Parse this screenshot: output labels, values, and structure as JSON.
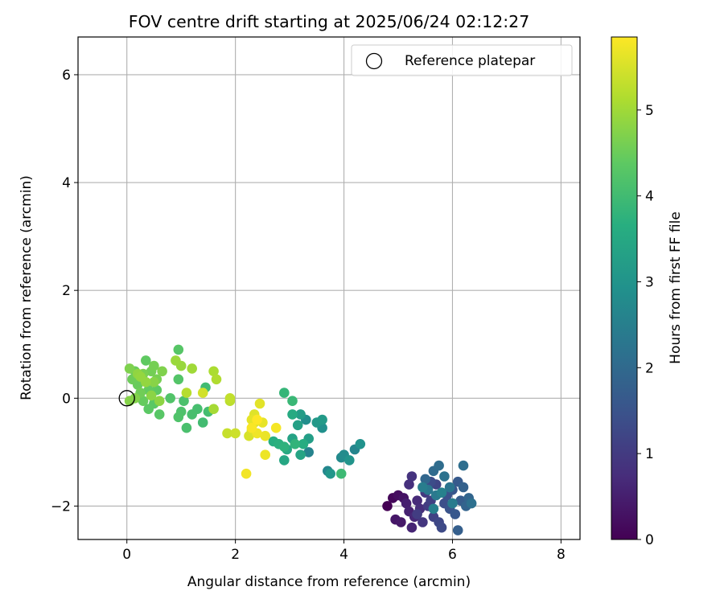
{
  "chart_data": {
    "type": "scatter",
    "title": "FOV centre drift starting at 2025/06/24 02:12:27",
    "xlabel": "Angular distance from reference (arcmin)",
    "ylabel": "Rotation from reference (arcmin)",
    "xlim": [
      -0.9,
      8.35
    ],
    "ylim": [
      -2.62,
      6.7
    ],
    "x_ticks": [
      0,
      2,
      4,
      6,
      8
    ],
    "y_ticks": [
      -2,
      0,
      2,
      4,
      6
    ],
    "x_tick_labels": [
      "0",
      "2",
      "4",
      "6",
      "8"
    ],
    "y_tick_labels": [
      "−2",
      "0",
      "2",
      "4",
      "6"
    ],
    "grid": true,
    "legend": {
      "position": "top-right",
      "entries": [
        {
          "label": "Reference platepar",
          "marker": "open-circle"
        }
      ]
    },
    "reference_point": {
      "x": 0,
      "y": 0
    },
    "colorbar": {
      "label": "Hours from first FF file",
      "colormap": "viridis",
      "range": [
        0,
        5.85
      ],
      "ticks": [
        0,
        1,
        2,
        3,
        4,
        5
      ],
      "tick_labels": [
        "0",
        "1",
        "2",
        "3",
        "4",
        "5"
      ]
    },
    "series": [
      {
        "points": [
          [
            4.8,
            -2.0,
            0.0
          ],
          [
            4.9,
            -1.85,
            0.1
          ],
          [
            5.0,
            -1.8,
            0.2
          ],
          [
            5.1,
            -1.85,
            0.3
          ],
          [
            4.95,
            -2.25,
            0.35
          ],
          [
            5.05,
            -2.3,
            0.4
          ],
          [
            5.15,
            -1.95,
            0.5
          ],
          [
            5.2,
            -2.1,
            0.55
          ],
          [
            5.25,
            -2.4,
            0.6
          ],
          [
            5.3,
            -2.2,
            0.65
          ],
          [
            5.35,
            -1.9,
            0.7
          ],
          [
            5.4,
            -2.05,
            0.75
          ],
          [
            5.2,
            -1.6,
            0.8
          ],
          [
            5.25,
            -1.45,
            0.85
          ],
          [
            5.45,
            -2.3,
            0.9
          ],
          [
            5.5,
            -1.75,
            0.95
          ],
          [
            5.55,
            -2.0,
            1.0
          ],
          [
            5.35,
            -2.15,
            1.05
          ],
          [
            5.6,
            -1.9,
            1.1
          ],
          [
            5.65,
            -2.2,
            1.15
          ],
          [
            5.7,
            -1.6,
            1.2
          ],
          [
            5.75,
            -2.3,
            1.25
          ],
          [
            5.8,
            -2.4,
            1.3
          ],
          [
            5.6,
            -1.55,
            1.35
          ],
          [
            5.85,
            -1.95,
            1.4
          ],
          [
            5.9,
            -1.8,
            1.45
          ],
          [
            5.95,
            -2.05,
            1.5
          ],
          [
            6.0,
            -1.7,
            1.55
          ],
          [
            6.05,
            -2.15,
            1.6
          ],
          [
            6.1,
            -1.55,
            1.65
          ],
          [
            6.15,
            -1.9,
            1.7
          ],
          [
            6.1,
            -2.45,
            1.75
          ],
          [
            6.2,
            -1.65,
            1.8
          ],
          [
            6.25,
            -2.0,
            1.85
          ],
          [
            6.3,
            -1.85,
            1.9
          ],
          [
            5.5,
            -1.5,
            1.95
          ],
          [
            5.65,
            -1.35,
            2.0
          ],
          [
            5.75,
            -1.25,
            2.05
          ],
          [
            6.2,
            -1.25,
            2.1
          ],
          [
            6.35,
            -1.95,
            2.15
          ],
          [
            5.85,
            -1.45,
            2.2
          ],
          [
            5.95,
            -1.65,
            2.25
          ],
          [
            5.55,
            -1.7,
            2.3
          ],
          [
            5.7,
            -1.8,
            2.35
          ],
          [
            6.0,
            -1.95,
            2.4
          ],
          [
            5.45,
            -1.65,
            2.45
          ],
          [
            5.65,
            -2.05,
            2.5
          ],
          [
            5.8,
            -1.75,
            2.55
          ],
          [
            3.35,
            -1.0,
            2.6
          ],
          [
            4.2,
            -0.95,
            2.65
          ],
          [
            3.7,
            -1.35,
            2.7
          ],
          [
            3.95,
            -1.1,
            2.75
          ],
          [
            4.0,
            -1.05,
            2.8
          ],
          [
            3.3,
            -0.4,
            2.85
          ],
          [
            3.6,
            -0.55,
            2.9
          ],
          [
            4.3,
            -0.85,
            2.95
          ],
          [
            4.1,
            -1.15,
            3.0
          ],
          [
            3.75,
            -1.4,
            3.05
          ],
          [
            3.5,
            -0.45,
            3.1
          ],
          [
            3.6,
            -0.4,
            3.15
          ],
          [
            3.2,
            -0.3,
            3.2
          ],
          [
            3.35,
            -0.75,
            3.25
          ],
          [
            3.15,
            -0.5,
            3.3
          ],
          [
            3.05,
            -0.75,
            3.35
          ],
          [
            3.2,
            -1.05,
            3.4
          ],
          [
            2.9,
            -1.15,
            3.45
          ],
          [
            2.95,
            -0.95,
            3.5
          ],
          [
            3.05,
            -0.3,
            3.55
          ],
          [
            3.25,
            -0.85,
            3.6
          ],
          [
            2.7,
            -0.8,
            3.65
          ],
          [
            2.8,
            -0.85,
            3.7
          ],
          [
            2.9,
            -0.9,
            3.75
          ],
          [
            3.1,
            -0.85,
            3.8
          ],
          [
            2.9,
            0.1,
            3.85
          ],
          [
            3.05,
            -0.05,
            3.9
          ],
          [
            3.95,
            -1.4,
            3.95
          ],
          [
            1.45,
            0.2,
            4.0
          ],
          [
            1.4,
            -0.45,
            4.02
          ],
          [
            1.5,
            -0.25,
            4.05
          ],
          [
            1.3,
            -0.2,
            4.08
          ],
          [
            1.2,
            -0.3,
            4.1
          ],
          [
            1.1,
            -0.55,
            4.12
          ],
          [
            1.05,
            -0.05,
            4.15
          ],
          [
            1.0,
            -0.25,
            4.18
          ],
          [
            0.95,
            -0.35,
            4.2
          ],
          [
            0.8,
            0.0,
            4.22
          ],
          [
            0.95,
            0.35,
            4.25
          ],
          [
            0.95,
            0.9,
            4.28
          ],
          [
            0.6,
            -0.3,
            4.3
          ],
          [
            0.5,
            -0.1,
            4.32
          ],
          [
            0.4,
            -0.2,
            4.35
          ],
          [
            0.55,
            0.15,
            4.38
          ],
          [
            0.35,
            0.7,
            4.4
          ],
          [
            0.4,
            0.15,
            4.42
          ],
          [
            0.3,
            -0.05,
            4.45
          ],
          [
            0.2,
            0.25,
            4.48
          ],
          [
            0.15,
            0.5,
            4.5
          ],
          [
            0.1,
            0.35,
            4.52
          ],
          [
            0.25,
            0.1,
            4.55
          ],
          [
            0.45,
            0.5,
            4.58
          ],
          [
            0.5,
            0.6,
            4.6
          ],
          [
            0.55,
            0.35,
            4.62
          ],
          [
            0.3,
            0.45,
            4.65
          ],
          [
            0.05,
            0.55,
            4.68
          ],
          [
            0.65,
            0.5,
            4.7
          ],
          [
            0.15,
            0.0,
            4.72
          ],
          [
            0.05,
            -0.05,
            4.75
          ],
          [
            0.5,
            0.3,
            4.78
          ],
          [
            0.45,
            0.05,
            4.8
          ],
          [
            0.6,
            -0.05,
            4.82
          ],
          [
            0.2,
            0.45,
            4.85
          ],
          [
            0.35,
            0.3,
            4.88
          ],
          [
            0.25,
            0.4,
            4.9
          ],
          [
            1.0,
            0.6,
            4.92
          ],
          [
            0.9,
            0.7,
            4.95
          ],
          [
            1.2,
            0.55,
            5.0
          ],
          [
            1.6,
            -0.2,
            5.05
          ],
          [
            1.6,
            0.5,
            5.1
          ],
          [
            1.65,
            0.35,
            5.15
          ],
          [
            1.1,
            0.1,
            5.2
          ],
          [
            1.9,
            -0.05,
            5.25
          ],
          [
            1.9,
            0.0,
            5.3
          ],
          [
            1.85,
            -0.65,
            5.35
          ],
          [
            2.0,
            -0.65,
            5.4
          ],
          [
            1.4,
            0.1,
            5.45
          ],
          [
            2.25,
            -0.7,
            5.5
          ],
          [
            2.3,
            -0.6,
            5.52
          ],
          [
            2.35,
            -0.45,
            5.55
          ],
          [
            2.35,
            -0.3,
            5.58
          ],
          [
            2.45,
            -0.1,
            5.6
          ],
          [
            2.3,
            -0.4,
            5.62
          ],
          [
            2.5,
            -0.45,
            5.65
          ],
          [
            2.55,
            -0.7,
            5.68
          ],
          [
            2.55,
            -1.05,
            5.7
          ],
          [
            2.4,
            -0.65,
            5.72
          ],
          [
            2.2,
            -1.4,
            5.75
          ],
          [
            2.75,
            -0.55,
            5.78
          ],
          [
            2.3,
            -0.55,
            5.8
          ],
          [
            2.4,
            -0.4,
            5.85
          ]
        ]
      }
    ]
  }
}
